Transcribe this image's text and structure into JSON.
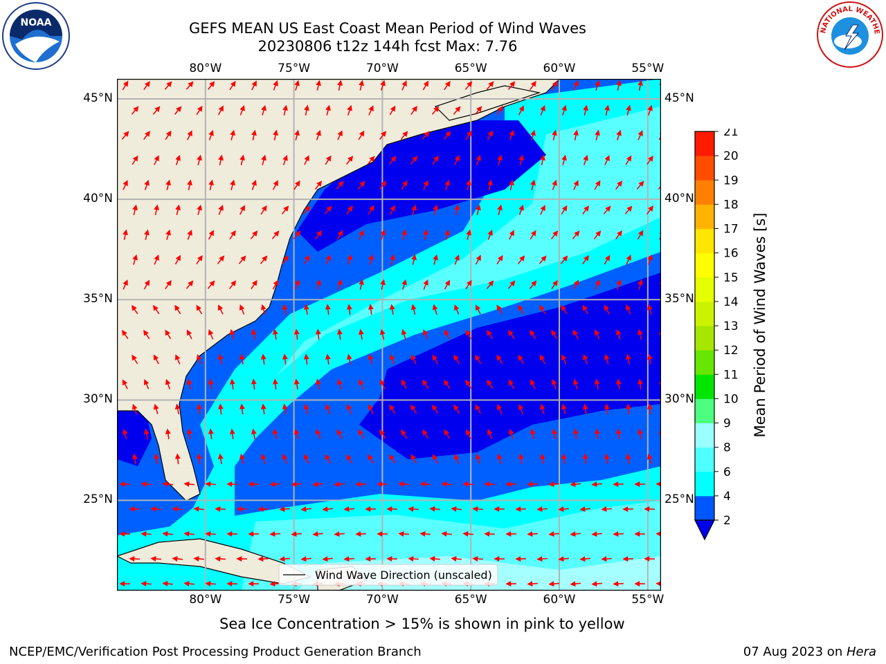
{
  "title_line1": "GEFS MEAN US East Coast Mean Period of Wind Waves",
  "title_line2": "20230806 t12z 144h fcst   Max: 7.76",
  "map": {
    "lon_labels": [
      "80°W",
      "75°W",
      "70°W",
      "65°W",
      "60°W",
      "55°W"
    ],
    "lon_values": [
      -80,
      -75,
      -70,
      -65,
      -60,
      -55
    ],
    "lat_labels": [
      "45°N",
      "40°N",
      "35°N",
      "30°N",
      "25°N"
    ],
    "lat_values": [
      45,
      40,
      35,
      30,
      25
    ],
    "extent": {
      "lon_min": -85,
      "lon_max": -54.25,
      "lat_min": 20.5,
      "lat_max": 46
    },
    "legend_label": "Wind Wave Direction (unscaled)",
    "land_color": "#efecdc",
    "arrow_color": "#ff0000",
    "grid": true
  },
  "colorbar": {
    "label": "Mean Period of Wind Waves [s]",
    "ticks": [
      "2",
      "4",
      "6",
      "8",
      "9",
      "10",
      "11",
      "12",
      "13",
      "14",
      "15",
      "16",
      "17",
      "18",
      "19",
      "20",
      "21"
    ],
    "colors": [
      "#0057ff",
      "#00ffff",
      "#4dffff",
      "#99ffff",
      "#4dff80",
      "#00e600",
      "#66e600",
      "#a6e600",
      "#ccf200",
      "#e6ff00",
      "#ffff00",
      "#ffe600",
      "#ffb300",
      "#ff8000",
      "#ff4d00",
      "#ff1a00",
      "#ff0000"
    ],
    "under_color": "#0000ee"
  },
  "field_colors": {
    "p2_4": "#0060ff",
    "p0_2": "#0000ee",
    "p4_6": "#00ffff",
    "p6_8": "#59ffff",
    "p8_9": "#a5ffff"
  },
  "sea_ice_note": "Sea Ice Concentration > 15% is shown in pink to yellow",
  "footer_left": "NCEP/EMC/Verification Post Processing Product Generation Branch",
  "footer_date": "07 Aug 2023 on ",
  "footer_machine": "Hera",
  "logos": {
    "left": "NOAA",
    "right": "NATIONAL WEATHER SERVICE"
  }
}
